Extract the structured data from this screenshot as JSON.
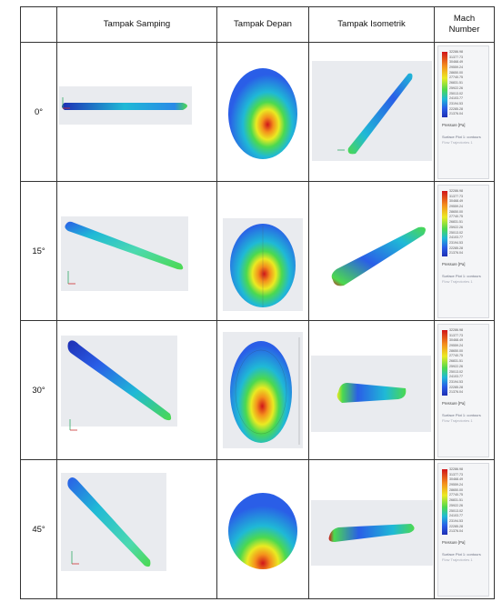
{
  "table": {
    "headers": [
      "",
      "Tampak Samping",
      "Tampak Depan",
      "Tampak Isometrik",
      "Mach\nNumber"
    ],
    "header_angle": "",
    "header_side": "Tampak Samping",
    "header_front": "Tampak Depan",
    "header_iso": "Tampak Isometrik",
    "header_mach_line1": "Mach",
    "header_mach_line2": "Number",
    "rows": [
      {
        "angle": "0°"
      },
      {
        "angle": "15°"
      },
      {
        "angle": "30°"
      },
      {
        "angle": "45°"
      }
    ]
  },
  "legend": {
    "ticks": [
      "32286.98",
      "31377.73",
      "30468.49",
      "29559.24",
      "28650.00",
      "27740.75",
      "26831.51",
      "25922.26",
      "25013.02",
      "24103.77",
      "23194.53",
      "22285.28",
      "21376.04"
    ],
    "unit": "Pressure [Pa]",
    "footer": "Surface Plot 1: contours",
    "footer_sub": "Flow Trajectories 1"
  },
  "colors": {
    "red": "#d0151a",
    "orange": "#f4901c",
    "yellow": "#eaea22",
    "green": "#4cd94f",
    "cyan": "#1fb9d6",
    "blue": "#2a5ee7",
    "navy": "#1e2fb4"
  },
  "icons": [
    "axis-triad-icon"
  ]
}
